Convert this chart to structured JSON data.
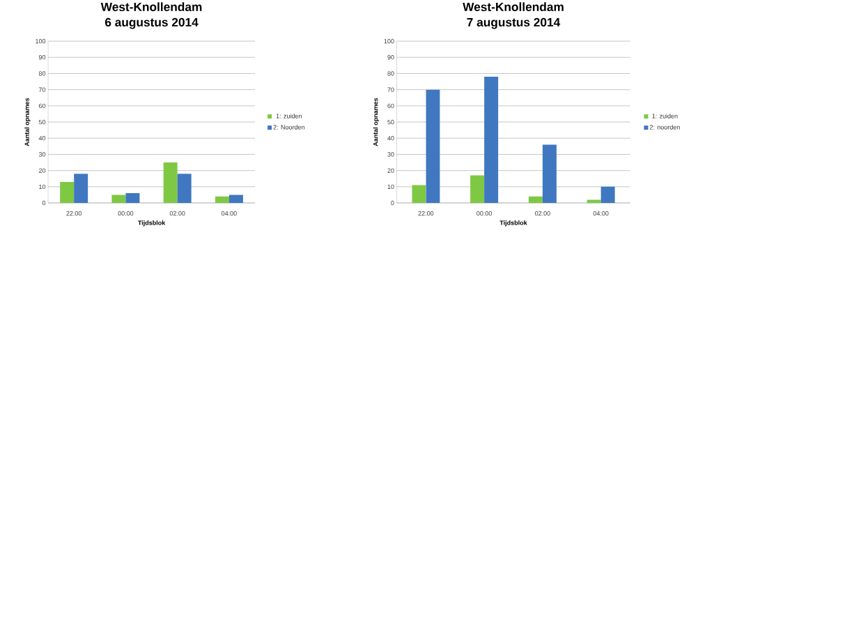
{
  "chart_data": [
    {
      "type": "bar",
      "title": "West-Knollendam",
      "subtitle": "6 augustus 2014",
      "xlabel": "Tijdsblok",
      "ylabel": "Aantal opnames",
      "categories": [
        "22:00",
        "00:00",
        "02:00",
        "04:00"
      ],
      "series": [
        {
          "name": "1: zuiden",
          "color": "#7ec843",
          "values": [
            13,
            5,
            25,
            4
          ]
        },
        {
          "name": "2: Noorden",
          "color": "#3f78c0",
          "values": [
            18,
            6,
            18,
            5
          ]
        }
      ],
      "ylim": [
        0,
        100
      ],
      "yticks": [
        0,
        10,
        20,
        30,
        40,
        50,
        60,
        70,
        80,
        90,
        100
      ],
      "grid": "y",
      "legend": "right"
    },
    {
      "type": "bar",
      "title": "West-Knollendam",
      "subtitle": "7 augustus 2014",
      "xlabel": "Tijdsblok",
      "ylabel": "Aantal opnames",
      "categories": [
        "22:00",
        "00:00",
        "02:00",
        "04:00"
      ],
      "series": [
        {
          "name": "1: zuiden",
          "color": "#7ec843",
          "values": [
            11,
            17,
            4,
            2
          ]
        },
        {
          "name": "2: noorden",
          "color": "#3f78c0",
          "values": [
            70,
            78,
            36,
            10
          ]
        }
      ],
      "ylim": [
        0,
        100
      ],
      "yticks": [
        0,
        10,
        20,
        30,
        40,
        50,
        60,
        70,
        80,
        90,
        100
      ],
      "grid": "y",
      "legend": "right"
    }
  ]
}
